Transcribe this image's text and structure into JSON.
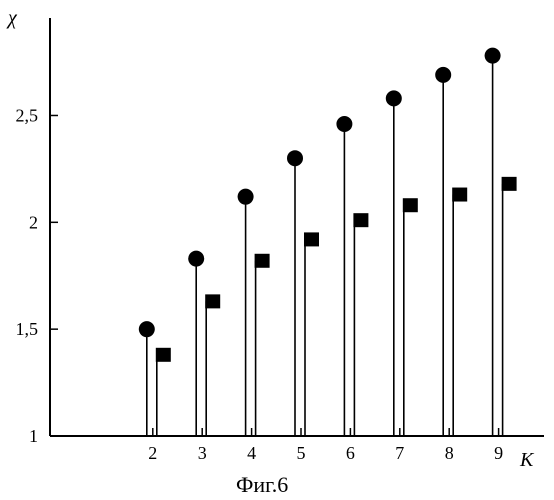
{
  "chart_data": {
    "type": "scatter",
    "style": "stem",
    "title": "",
    "caption": "Фиг.6",
    "xlabel": "K",
    "ylabel": "χ",
    "x": [
      2,
      3,
      4,
      5,
      6,
      7,
      8,
      9
    ],
    "xlim": [
      0,
      10
    ],
    "ylim": [
      1,
      2.9
    ],
    "yticks": [
      1,
      1.5,
      2,
      2.5
    ],
    "ytick_labels": [
      "1",
      "1,5",
      "2",
      "2,5"
    ],
    "xtick_labels": [
      "2",
      "3",
      "4",
      "5",
      "6",
      "7",
      "8",
      "9"
    ],
    "grid": false,
    "legend": "none",
    "series": [
      {
        "marker": "circle",
        "values": [
          1.5,
          1.83,
          2.12,
          2.3,
          2.46,
          2.58,
          2.69,
          2.78
        ]
      },
      {
        "marker": "square",
        "values": [
          1.38,
          1.63,
          1.82,
          1.92,
          2.01,
          2.08,
          2.13,
          2.18
        ]
      }
    ]
  }
}
